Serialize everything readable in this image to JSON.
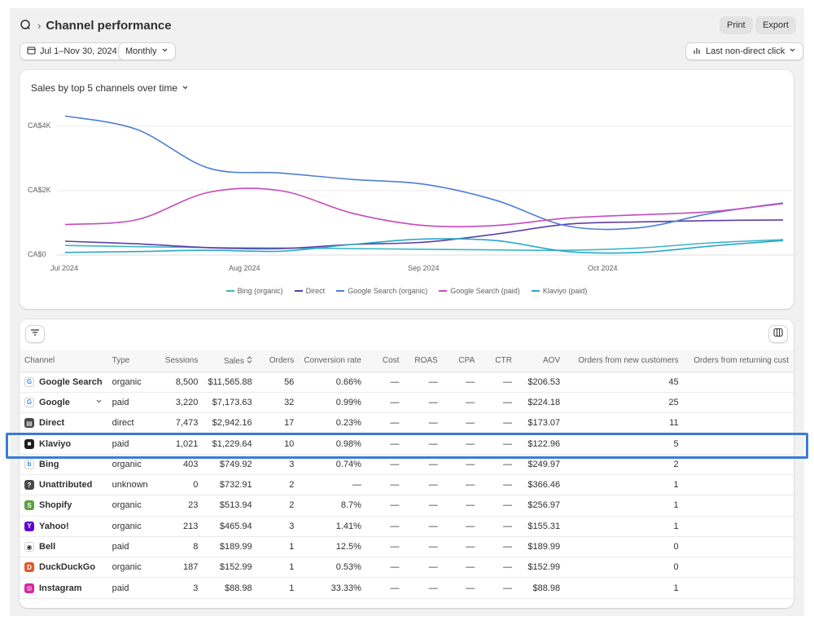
{
  "header": {
    "title": "Channel performance",
    "separator": "›",
    "print_label": "Print",
    "export_label": "Export"
  },
  "filters": {
    "date_range": "Jul 1–Nov 30, 2024",
    "granularity": "Monthly",
    "attribution": "Last non-direct click"
  },
  "colors": {
    "bing_organic": "#3bb6c4",
    "direct": "#5b3fa8",
    "google_organic": "#4f7fd1",
    "google_paid": "#c54bbd",
    "klaviyo_paid": "#2aa8c9",
    "highlight": "#3a7bd5"
  },
  "chart_data": {
    "type": "line",
    "title": "Sales by top 5 channels over time",
    "y_ticks": [
      "CA$4K",
      "CA$2K",
      "CA$0"
    ],
    "x_ticks": [
      "Jul 2024",
      "Aug 2024",
      "Sep 2024",
      "Oct 2024"
    ],
    "ylim": [
      0,
      4600
    ],
    "x": [
      "2024-07-01",
      "2024-07-15",
      "2024-08-01",
      "2024-08-15",
      "2024-09-01",
      "2024-09-15",
      "2024-10-01",
      "2024-10-15",
      "2024-11-01",
      "2024-11-15",
      "2024-11-30"
    ],
    "series": [
      {
        "name": "Bing (organic)",
        "values": [
          300,
          260,
          230,
          220,
          200,
          180,
          160,
          150,
          220,
          380,
          480
        ]
      },
      {
        "name": "Direct",
        "values": [
          430,
          350,
          230,
          200,
          330,
          400,
          650,
          960,
          1030,
          1070,
          1090
        ]
      },
      {
        "name": "Google Search (organic)",
        "values": [
          4320,
          3900,
          2700,
          2550,
          2350,
          2200,
          1700,
          900,
          850,
          1300,
          1620
        ]
      },
      {
        "name": "Google Search (paid)",
        "values": [
          950,
          1100,
          1950,
          2000,
          1300,
          920,
          920,
          1150,
          1250,
          1350,
          1600
        ]
      },
      {
        "name": "Klaviyo (paid)",
        "values": [
          80,
          110,
          150,
          120,
          330,
          500,
          450,
          110,
          80,
          280,
          450
        ]
      }
    ],
    "legend_position": "bottom",
    "grid": true
  },
  "table": {
    "columns": [
      "Channel",
      "Type",
      "Sessions",
      "Sales",
      "Orders",
      "Conversion rate",
      "Cost",
      "ROAS",
      "CPA",
      "CTR",
      "AOV",
      "Orders from new customers",
      "Orders from returning cust"
    ],
    "rows": [
      {
        "channel": "Google Search",
        "icon": "google-icon",
        "type": "organic",
        "sessions": "8,500",
        "sales": "$11,565.88",
        "orders": "56",
        "conv": "0.66%",
        "cost": "—",
        "roas": "—",
        "cpa": "—",
        "ctr": "—",
        "aov": "$206.53",
        "new": "45",
        "ret": ""
      },
      {
        "channel": "Google",
        "icon": "google-icon",
        "type": "paid",
        "sessions": "3,220",
        "sales": "$7,173.63",
        "orders": "32",
        "conv": "0.99%",
        "cost": "—",
        "roas": "—",
        "cpa": "—",
        "ctr": "—",
        "aov": "$224.18",
        "new": "25",
        "ret": ""
      },
      {
        "channel": "Direct",
        "icon": "storefront-icon",
        "type": "direct",
        "sessions": "7,473",
        "sales": "$2,942.16",
        "orders": "17",
        "conv": "0.23%",
        "cost": "—",
        "roas": "—",
        "cpa": "—",
        "ctr": "—",
        "aov": "$173.07",
        "new": "11",
        "ret": ""
      },
      {
        "channel": "Klaviyo",
        "icon": "klaviyo-icon",
        "type": "paid",
        "sessions": "1,021",
        "sales": "$1,229.64",
        "orders": "10",
        "conv": "0.98%",
        "cost": "—",
        "roas": "—",
        "cpa": "—",
        "ctr": "—",
        "aov": "$122.96",
        "new": "5",
        "ret": ""
      },
      {
        "channel": "Bing",
        "icon": "bing-icon",
        "type": "organic",
        "sessions": "403",
        "sales": "$749.92",
        "orders": "3",
        "conv": "0.74%",
        "cost": "—",
        "roas": "—",
        "cpa": "—",
        "ctr": "—",
        "aov": "$249.97",
        "new": "2",
        "ret": ""
      },
      {
        "channel": "Unattributed",
        "icon": "question-icon",
        "type": "unknown",
        "sessions": "0",
        "sales": "$732.91",
        "orders": "2",
        "conv": "—",
        "cost": "—",
        "roas": "—",
        "cpa": "—",
        "ctr": "—",
        "aov": "$366.46",
        "new": "1",
        "ret": ""
      },
      {
        "channel": "Shopify",
        "icon": "shopify-icon",
        "type": "organic",
        "sessions": "23",
        "sales": "$513.94",
        "orders": "2",
        "conv": "8.7%",
        "cost": "—",
        "roas": "—",
        "cpa": "—",
        "ctr": "—",
        "aov": "$256.97",
        "new": "1",
        "ret": ""
      },
      {
        "channel": "Yahoo!",
        "icon": "yahoo-icon",
        "type": "organic",
        "sessions": "213",
        "sales": "$465.94",
        "orders": "3",
        "conv": "1.41%",
        "cost": "—",
        "roas": "—",
        "cpa": "—",
        "ctr": "—",
        "aov": "$155.31",
        "new": "1",
        "ret": ""
      },
      {
        "channel": "Bell",
        "icon": "bell-icon",
        "type": "paid",
        "sessions": "8",
        "sales": "$189.99",
        "orders": "1",
        "conv": "12.5%",
        "cost": "—",
        "roas": "—",
        "cpa": "—",
        "ctr": "—",
        "aov": "$189.99",
        "new": "0",
        "ret": ""
      },
      {
        "channel": "DuckDuckGo",
        "icon": "duckduckgo-icon",
        "type": "organic",
        "sessions": "187",
        "sales": "$152.99",
        "orders": "1",
        "conv": "0.53%",
        "cost": "—",
        "roas": "—",
        "cpa": "—",
        "ctr": "—",
        "aov": "$152.99",
        "new": "0",
        "ret": ""
      },
      {
        "channel": "Instagram",
        "icon": "instagram-icon",
        "type": "paid",
        "sessions": "3",
        "sales": "$88.98",
        "orders": "1",
        "conv": "33.33%",
        "cost": "—",
        "roas": "—",
        "cpa": "—",
        "ctr": "—",
        "aov": "$88.98",
        "new": "1",
        "ret": ""
      }
    ]
  }
}
